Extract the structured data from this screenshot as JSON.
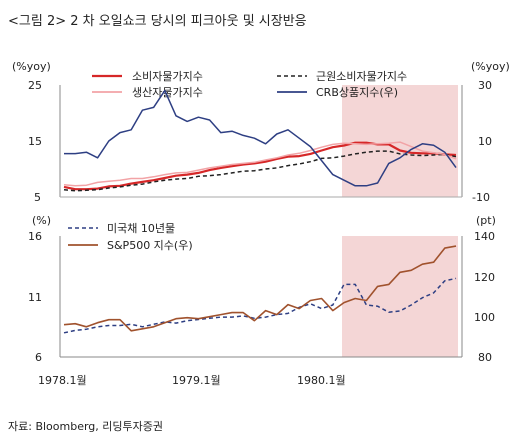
{
  "figure": {
    "title": "<그림 2> 2 차 오일쇼크 당시의 피크아웃 및 시장반응",
    "source": "자료: Bloomberg, 리딩투자증권"
  },
  "colors": {
    "cpi": "#d62728",
    "core_cpi": "#222222",
    "ppi": "#f2a3a6",
    "crb": "#2e3f83",
    "treasury": "#2e3f83",
    "sp500": "#a0522d",
    "shade": "#f4d6d6",
    "axis": "#888888"
  },
  "chart_data": [
    {
      "type": "line",
      "panel": "top",
      "x_tick_labels": [
        "1978.1월",
        "1979.1월",
        "1980.1월"
      ],
      "x_range": [
        "1978.1",
        "1980.12"
      ],
      "shaded_period": [
        "1980.2",
        "1980.12"
      ],
      "left_axis": {
        "unit": "(%yoy)",
        "range": [
          5,
          25
        ],
        "ticks": [
          "25",
          "15",
          "5"
        ]
      },
      "right_axis": {
        "unit": "(%yoy)",
        "range": [
          -10,
          30
        ],
        "ticks": [
          "30",
          "10",
          "-10"
        ]
      },
      "grid": false,
      "legend_position": "top",
      "series": [
        {
          "name": "소비자물가지수",
          "axis": "left",
          "style": "solid",
          "values": [
            6.8,
            6.4,
            6.4,
            6.5,
            6.9,
            7.0,
            7.4,
            7.7,
            8.0,
            8.4,
            8.8,
            9.0,
            9.3,
            9.8,
            10.2,
            10.5,
            10.8,
            11.0,
            11.3,
            11.8,
            12.2,
            12.3,
            12.7,
            13.3,
            13.9,
            14.2,
            14.7,
            14.7,
            14.4,
            14.4,
            13.3,
            12.9,
            12.8,
            12.8,
            12.6,
            12.5
          ]
        },
        {
          "name": "근원소비자물가지수",
          "axis": "left",
          "style": "dashed",
          "values": [
            6.3,
            6.1,
            6.2,
            6.3,
            6.6,
            6.8,
            7.1,
            7.3,
            7.7,
            8.0,
            8.2,
            8.3,
            8.7,
            8.8,
            9.0,
            9.3,
            9.6,
            9.7,
            10.0,
            10.2,
            10.6,
            10.9,
            11.3,
            11.9,
            12.0,
            12.3,
            12.7,
            13.0,
            13.2,
            13.2,
            12.7,
            12.5,
            12.4,
            12.5,
            12.6,
            12.2
          ]
        },
        {
          "name": "생산자물가지수",
          "axis": "left",
          "style": "solid",
          "values": [
            7.2,
            7.0,
            7.1,
            7.6,
            7.8,
            8.0,
            8.3,
            8.3,
            8.6,
            9.0,
            9.3,
            9.4,
            9.8,
            10.2,
            10.5,
            10.8,
            11.0,
            11.2,
            11.6,
            12.0,
            12.5,
            12.8,
            13.3,
            13.9,
            14.4,
            14.6,
            14.5,
            14.4,
            14.5,
            14.6,
            14.8,
            14.0,
            13.2,
            12.9,
            12.6,
            11.8
          ]
        },
        {
          "name": "CRB상품지수(우)",
          "axis": "right",
          "style": "solid",
          "values": [
            5.5,
            5.5,
            6.0,
            4.0,
            10.0,
            13.0,
            14.0,
            21.0,
            22.0,
            28.0,
            19.0,
            17.0,
            18.5,
            17.5,
            13.0,
            13.5,
            12.0,
            11.0,
            9.0,
            12.5,
            14.0,
            11.0,
            8.0,
            3.0,
            -2.0,
            -4.0,
            -6.0,
            -6.0,
            -5.0,
            2.0,
            4.0,
            7.0,
            9.0,
            8.5,
            6.0,
            0.5
          ]
        }
      ]
    },
    {
      "type": "line",
      "panel": "bottom",
      "x_tick_labels": [
        "1978.1월",
        "1979.1월",
        "1980.1월"
      ],
      "x_range": [
        "1978.1",
        "1980.12"
      ],
      "shaded_period": [
        "1980.2",
        "1980.12"
      ],
      "left_axis": {
        "unit": "(%)",
        "range": [
          6,
          16
        ],
        "ticks": [
          "16",
          "11",
          "6"
        ]
      },
      "right_axis": {
        "unit": "(pt)",
        "range": [
          80,
          140
        ],
        "ticks": [
          "140",
          "120",
          "100",
          "80"
        ]
      },
      "grid": false,
      "legend_position": "top-left",
      "series": [
        {
          "name": "미국채 10년물",
          "axis": "left",
          "style": "dashed",
          "values": [
            8.0,
            8.2,
            8.3,
            8.5,
            8.6,
            8.6,
            8.7,
            8.5,
            8.7,
            8.9,
            8.8,
            9.0,
            9.1,
            9.2,
            9.3,
            9.3,
            9.4,
            9.2,
            9.3,
            9.5,
            9.6,
            10.1,
            10.4,
            10.0,
            10.3,
            12.0,
            12.0,
            10.3,
            10.2,
            9.7,
            9.8,
            10.3,
            10.9,
            11.3,
            12.3,
            12.5
          ]
        },
        {
          "name": "S&P500 지수(우)",
          "axis": "right",
          "style": "solid",
          "values": [
            96,
            96.5,
            95,
            97,
            98.5,
            98.5,
            93,
            94,
            95,
            97,
            99,
            99.5,
            99,
            100,
            101,
            102,
            102,
            98,
            103,
            101,
            106,
            104,
            108,
            109,
            103,
            107,
            109,
            108,
            115,
            116,
            122,
            123,
            126,
            127,
            134,
            135
          ]
        }
      ]
    }
  ]
}
